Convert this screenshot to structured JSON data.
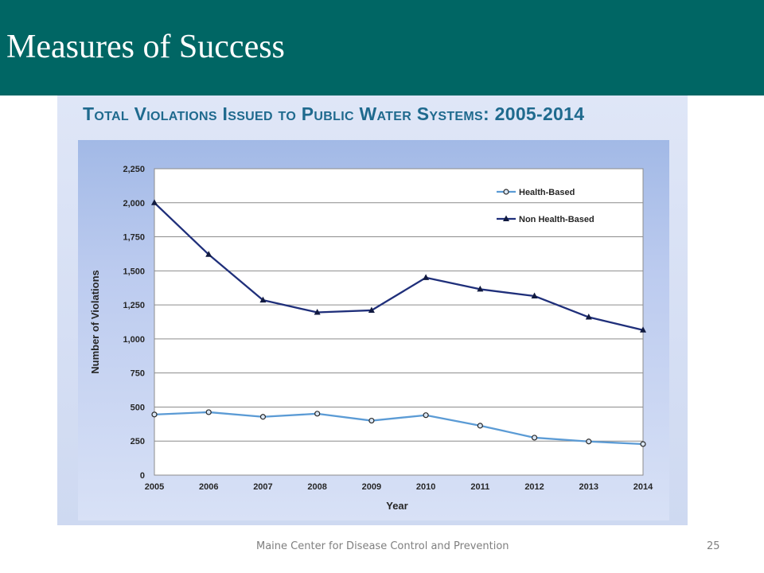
{
  "slide": {
    "title": "Measures of Success",
    "footer_text": "Maine Center for Disease Control and Prevention",
    "page_number": "25",
    "header_color": "#006664"
  },
  "chart_data": {
    "type": "line",
    "title": "Total Violations Issued to Public Water Systems: 2005-2014",
    "xlabel": "Year",
    "ylabel": "Number of Violations",
    "x": [
      "2005",
      "2006",
      "2007",
      "2008",
      "2009",
      "2010",
      "2011",
      "2012",
      "2013",
      "2014"
    ],
    "y_ticks": [
      "0",
      "250",
      "500",
      "750",
      "1,000",
      "1,250",
      "1,500",
      "1,750",
      "2,000",
      "2,250"
    ],
    "ylim": [
      0,
      2250
    ],
    "grid": true,
    "legend_position": "top-right",
    "series": [
      {
        "name": "Health-Based",
        "marker": "circle",
        "color": "#5b9bd5",
        "values": [
          445,
          462,
          428,
          451,
          400,
          440,
          363,
          275,
          247,
          228
        ]
      },
      {
        "name": "Non Health-Based",
        "marker": "triangle",
        "color": "#1f2f7a",
        "values": [
          2000,
          1620,
          1285,
          1195,
          1210,
          1450,
          1365,
          1315,
          1160,
          1065
        ]
      }
    ]
  }
}
